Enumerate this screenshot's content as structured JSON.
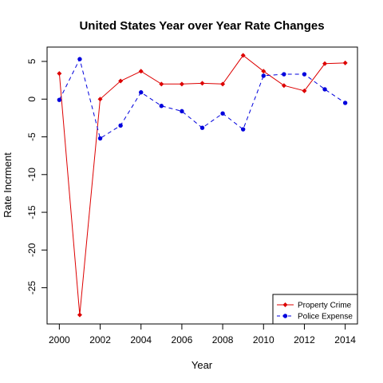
{
  "chart_data": {
    "type": "line",
    "title": "United States Year over Year Rate Changes",
    "xlabel": "Year",
    "ylabel": "Rate Incrment",
    "xlim": [
      1999.4,
      2014.6
    ],
    "ylim": [
      -29.8,
      6.9
    ],
    "x_ticks": [
      2000,
      2002,
      2004,
      2006,
      2008,
      2010,
      2012,
      2014
    ],
    "y_ticks": [
      5,
      0,
      -5,
      -10,
      -15,
      -20,
      -25
    ],
    "grid": false,
    "legend_position": "bottom-right",
    "x": [
      2000,
      2001,
      2002,
      2003,
      2004,
      2005,
      2006,
      2007,
      2008,
      2009,
      2010,
      2011,
      2012,
      2013,
      2014
    ],
    "series": [
      {
        "name": "Property Crime",
        "color": "#dd0000",
        "line_style": "solid",
        "marker": "diamond",
        "values": [
          3.4,
          -28.6,
          0.0,
          2.4,
          3.7,
          2.0,
          2.0,
          2.1,
          2.0,
          5.8,
          3.7,
          1.8,
          1.1,
          4.7,
          4.8
        ]
      },
      {
        "name": "Police Expense",
        "color": "#0000dd",
        "line_style": "dashed",
        "marker": "circle",
        "values": [
          -0.1,
          5.3,
          -5.2,
          -3.5,
          0.9,
          -0.9,
          -1.6,
          -3.8,
          -1.9,
          -4.0,
          3.1,
          3.3,
          3.3,
          1.3,
          -0.5
        ]
      }
    ]
  }
}
